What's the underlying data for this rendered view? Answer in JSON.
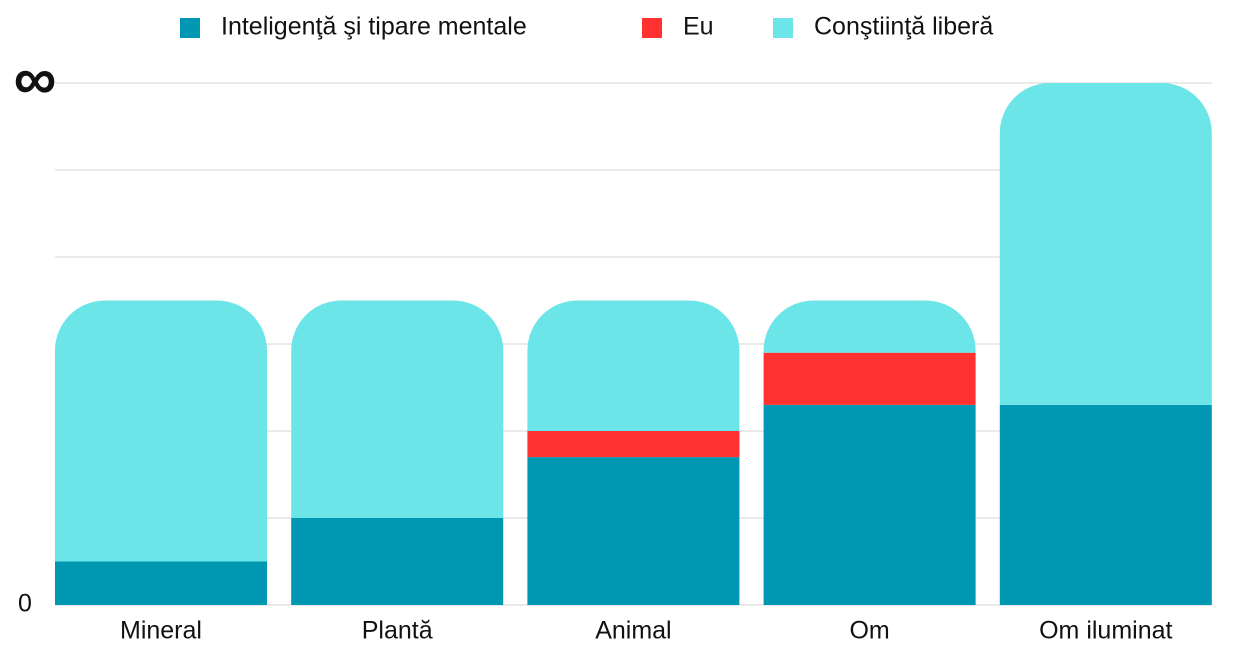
{
  "chart_data": {
    "type": "stacked_bar",
    "categories": [
      "Mineral",
      "Plantă",
      "Animal",
      "Om",
      "Om iluminat"
    ],
    "series": [
      {
        "name": "Inteligenţă şi tipare mentale",
        "color": "#0097b2",
        "values": [
          0.5,
          1.0,
          1.7,
          2.3,
          2.3
        ]
      },
      {
        "name": "Eu",
        "color": "#ff3131",
        "values": [
          0,
          0,
          0.3,
          0.6,
          0
        ]
      },
      {
        "name": "Conştiinţă liberă",
        "color": "#6ce5e8",
        "values": [
          3.0,
          2.5,
          1.5,
          0.6,
          3.7
        ]
      }
    ],
    "ylim": [
      0,
      6
    ],
    "yticks": [
      0,
      {
        "value": 1,
        "label": null
      },
      {
        "value": 2,
        "label": null
      },
      {
        "value": 3,
        "label": null
      },
      {
        "value": 4,
        "label": null
      },
      {
        "value": 5,
        "label": null
      },
      {
        "value": 6,
        "label": "∞"
      }
    ],
    "grid": true,
    "legend": "top"
  }
}
